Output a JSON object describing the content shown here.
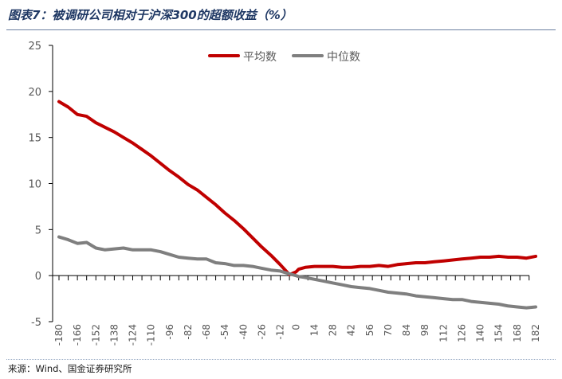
{
  "title": "图表7：被调研公司相对于沪深300的超额收益（%）",
  "source": "来源：Wind、国金证券研究所",
  "colors": {
    "mean": "#c00000",
    "median": "#7f7f7f",
    "axis": "#000000",
    "text": "#595959"
  },
  "chart_data": {
    "type": "line",
    "title": "",
    "xlabel": "",
    "ylabel": "",
    "ylim": [
      -5,
      25
    ],
    "yticks": [
      "25",
      "20",
      "15",
      "10",
      "5",
      "0",
      "-5"
    ],
    "xtick_labels": [
      "-180",
      "-166",
      "-152",
      "-138",
      "-124",
      "-110",
      "-96",
      "-82",
      "-68",
      "-54",
      "-40",
      "-26",
      "-12",
      "0",
      "14",
      "28",
      "42",
      "56",
      "70",
      "84",
      "98",
      "112",
      "126",
      "140",
      "154",
      "168",
      "182"
    ],
    "grid": false,
    "legend_position": "top-center",
    "x": [
      -180,
      -173,
      -166,
      -159,
      -152,
      -145,
      -138,
      -131,
      -124,
      -117,
      -110,
      -103,
      -96,
      -89,
      -82,
      -75,
      -68,
      -61,
      -54,
      -47,
      -40,
      -33,
      -26,
      -19,
      -12,
      -5,
      0,
      2,
      7,
      14,
      21,
      28,
      35,
      42,
      49,
      56,
      63,
      70,
      77,
      84,
      91,
      98,
      105,
      112,
      119,
      126,
      133,
      140,
      147,
      154,
      161,
      168,
      175,
      182
    ],
    "series": [
      {
        "name": "平均数",
        "values": [
          18.9,
          18.3,
          17.5,
          17.3,
          16.6,
          16.1,
          15.6,
          15.0,
          14.4,
          13.7,
          13.0,
          12.2,
          11.4,
          10.7,
          9.9,
          9.3,
          8.5,
          7.7,
          6.8,
          6.0,
          5.1,
          4.1,
          3.1,
          2.2,
          1.2,
          0.1,
          0.4,
          0.7,
          0.9,
          1.0,
          1.0,
          1.0,
          0.9,
          0.9,
          1.0,
          1.0,
          1.1,
          1.0,
          1.2,
          1.3,
          1.4,
          1.4,
          1.5,
          1.6,
          1.7,
          1.8,
          1.9,
          2.0,
          2.0,
          2.1,
          2.0,
          2.0,
          1.9,
          2.1
        ]
      },
      {
        "name": "中位数",
        "values": [
          4.2,
          3.9,
          3.5,
          3.6,
          3.0,
          2.8,
          2.9,
          3.0,
          2.8,
          2.8,
          2.8,
          2.6,
          2.3,
          2.0,
          1.9,
          1.8,
          1.8,
          1.4,
          1.3,
          1.1,
          1.1,
          1.0,
          0.8,
          0.6,
          0.5,
          0.2,
          0.0,
          -0.1,
          -0.2,
          -0.4,
          -0.6,
          -0.8,
          -1.0,
          -1.2,
          -1.3,
          -1.4,
          -1.6,
          -1.8,
          -1.9,
          -2.0,
          -2.2,
          -2.3,
          -2.4,
          -2.5,
          -2.6,
          -2.6,
          -2.8,
          -2.9,
          -3.0,
          -3.1,
          -3.3,
          -3.4,
          -3.5,
          -3.4
        ]
      }
    ]
  }
}
